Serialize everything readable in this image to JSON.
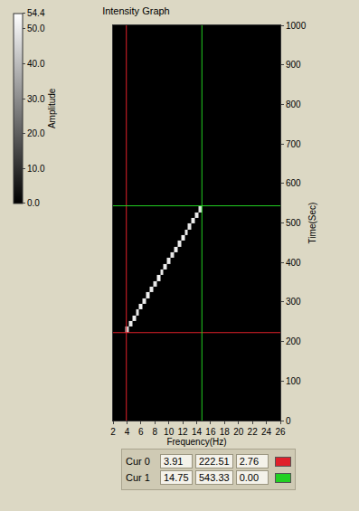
{
  "chart_data": {
    "type": "heatmap",
    "title": "Intensity Graph",
    "x_label": "Frequency(Hz)",
    "y_label": "Time(Sec)",
    "colorbar_label": "Amplitude",
    "xlim": [
      2,
      26
    ],
    "xticks": [
      2,
      4,
      6,
      8,
      10,
      12,
      14,
      16,
      18,
      20,
      22,
      24,
      26
    ],
    "ylim": [
      0,
      1000
    ],
    "yticks": [
      0,
      100,
      200,
      300,
      400,
      500,
      600,
      700,
      800,
      900,
      1000
    ],
    "zlim": [
      0,
      54.4
    ],
    "zticks": [
      {
        "value": 0,
        "label": "0.0"
      },
      {
        "value": 10,
        "label": "10.0"
      },
      {
        "value": 20,
        "label": "20.0"
      },
      {
        "value": 30,
        "label": "30.0"
      },
      {
        "value": 40,
        "label": "40.0"
      },
      {
        "value": 50,
        "label": "50.0"
      },
      54.4
    ],
    "grid": false,
    "cells": {
      "x": [
        4.0,
        4.5,
        5.0,
        5.5,
        6.0,
        6.5,
        7.0,
        7.5,
        8.0,
        8.5,
        9.0,
        9.5,
        10.0,
        10.5,
        11.0,
        11.5,
        12.0,
        12.5,
        13.0,
        13.5,
        14.0,
        14.5
      ],
      "y": [
        230,
        245,
        259,
        274,
        288,
        303,
        317,
        332,
        346,
        361,
        375,
        390,
        404,
        419,
        433,
        448,
        462,
        477,
        491,
        506,
        520,
        535
      ],
      "z": [
        46,
        50,
        51,
        49,
        52,
        50,
        51,
        50,
        49,
        52,
        50,
        51,
        50,
        49,
        51,
        50,
        52,
        50,
        49,
        51,
        50,
        48
      ]
    },
    "cursors": [
      {
        "name": "Cur 0",
        "color": "#e0202a",
        "x": 3.91,
        "y": 222.51,
        "z": 2.76
      },
      {
        "name": "Cur 1",
        "color": "#22d022",
        "x": 14.75,
        "y": 543.33,
        "z": {
          "value": 0,
          "label": "0.00"
        }
      }
    ]
  }
}
